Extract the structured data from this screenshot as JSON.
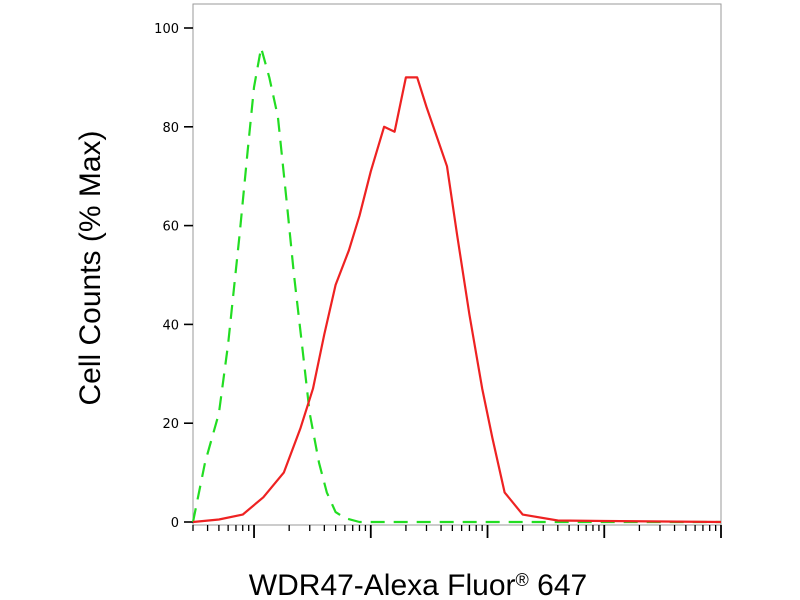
{
  "chart_data": {
    "type": "line",
    "title": "",
    "xlabel": "WDR47-Alexa Fluor",
    "xlabel_suffix": "647",
    "xlabel_superscript": "®",
    "ylabel": "Cell Counts (% Max)",
    "x_scale": "log",
    "xlim": [
      0.3,
      10000
    ],
    "ylim": [
      0,
      105
    ],
    "y_ticks": [
      0,
      20,
      40,
      60,
      80,
      100
    ],
    "grid": false,
    "legend": "none",
    "series": [
      {
        "color": "#22dd22",
        "style": "dashed",
        "x": [
          0.3,
          0.38,
          0.5,
          0.6,
          0.75,
          0.88,
          1.0,
          1.15,
          1.35,
          1.6,
          1.9,
          2.2,
          2.6,
          3.0,
          3.6,
          4.2,
          5.0,
          6.0,
          8.0,
          15,
          40,
          100,
          1000,
          10000
        ],
        "y": [
          0,
          12,
          22,
          36,
          58,
          75,
          88,
          96,
          90,
          82,
          65,
          50,
          35,
          22,
          12,
          6,
          2,
          0.8,
          0,
          0,
          0,
          0,
          0,
          0
        ]
      },
      {
        "color": "#ee2222",
        "style": "solid",
        "x": [
          0.3,
          0.5,
          0.8,
          1.2,
          1.8,
          2.5,
          3.2,
          4.0,
          5.0,
          6.5,
          8.0,
          10,
          13,
          16,
          20,
          25,
          30,
          38,
          45,
          55,
          70,
          90,
          110,
          140,
          200,
          400,
          1000,
          10000
        ],
        "y": [
          0,
          0.5,
          1.5,
          5,
          10,
          19,
          27,
          38,
          48,
          55,
          62,
          71,
          80,
          79,
          90,
          90,
          84,
          77,
          72,
          58,
          42,
          27,
          17,
          6,
          1.5,
          0.3,
          0.2,
          0
        ]
      }
    ]
  }
}
